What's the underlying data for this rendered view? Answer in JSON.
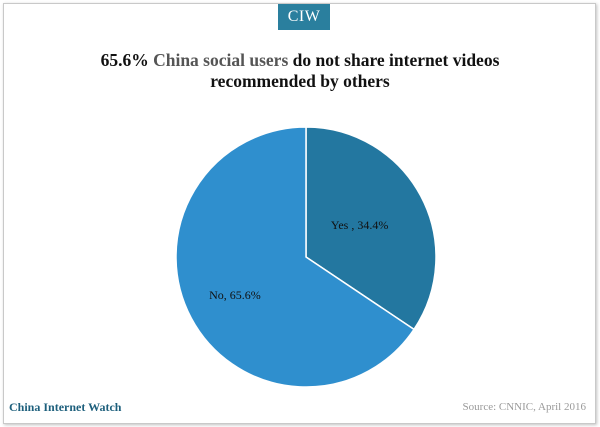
{
  "brand": {
    "badge": "CIW",
    "footer_name": "China Internet Watch"
  },
  "title": {
    "part1": "65.6% ",
    "highlight": "China social users",
    "part2": " do not share internet videos",
    "line2": "recommended by others"
  },
  "source": "Source: CNNIC, April 2016",
  "colors": {
    "badge": "#2a7f9e",
    "no_slice": "#2f8fce",
    "yes_slice": "#2377a0",
    "footer_brand": "#1d5f7c"
  },
  "chart_data": {
    "type": "pie",
    "title": "65.6% China social users do not share internet videos recommended by others",
    "slices": [
      {
        "name": "Yes",
        "label": "Yes , 34.4%",
        "value": 34.4,
        "color": "#2377a0"
      },
      {
        "name": "No",
        "label": "No, 65.6%",
        "value": 65.6,
        "color": "#2f8fce"
      }
    ]
  }
}
